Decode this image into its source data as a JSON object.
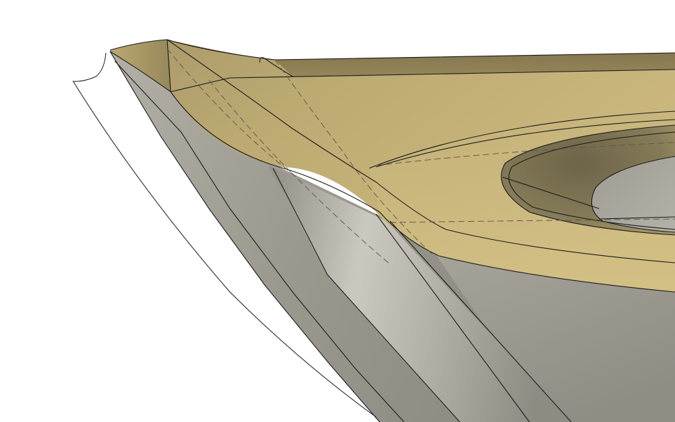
{
  "colors": {
    "background": "#ffffff",
    "top_face_light": "#d2bf85",
    "top_face_mid": "#b7a56c",
    "top_face_dark": "#8c7d52",
    "side_face_light": "#c8c6bc",
    "side_face_mid": "#a4a297",
    "side_face_dark": "#86847b",
    "edge": "#1a1a1a",
    "hidden_edge": "#5a5448"
  }
}
